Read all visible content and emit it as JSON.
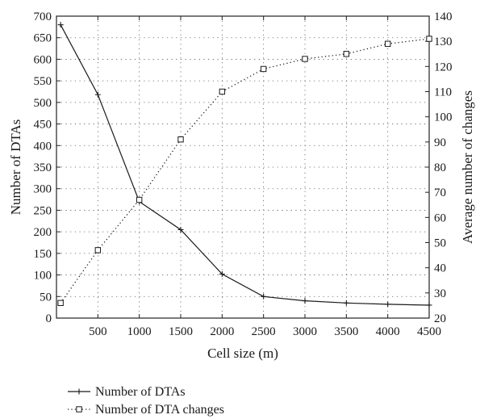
{
  "chart_data": {
    "type": "line",
    "xlabel": "Cell size (m)",
    "ylabel_left": "Number of DTAs",
    "ylabel_right": "Average number of changes",
    "xlim": [
      0,
      4500
    ],
    "x_ticks": [
      500,
      1000,
      1500,
      2000,
      2500,
      3000,
      3500,
      4000,
      4500
    ],
    "ylim_left": [
      0,
      700
    ],
    "y_ticks_left": [
      0,
      50,
      100,
      150,
      200,
      250,
      300,
      350,
      400,
      450,
      500,
      550,
      600,
      650,
      700
    ],
    "ylim_right": [
      20,
      140
    ],
    "y_ticks_right": [
      20,
      30,
      40,
      50,
      60,
      70,
      80,
      90,
      100,
      110,
      120,
      130,
      140
    ],
    "grid": true,
    "legend_position": "bottom-left",
    "series": [
      {
        "name": "Number of DTAs",
        "axis": "left",
        "style": "solid",
        "marker": "plus",
        "x": [
          50,
          500,
          1000,
          1500,
          2000,
          2500,
          3000,
          3500,
          4000,
          4500
        ],
        "y": [
          680,
          518,
          270,
          205,
          102,
          50,
          40,
          35,
          32,
          30
        ]
      },
      {
        "name": "Number of DTA changes",
        "axis": "right",
        "style": "dotted",
        "marker": "square",
        "x": [
          50,
          500,
          1000,
          1500,
          2000,
          2500,
          3000,
          3500,
          4000,
          4500
        ],
        "y": [
          26,
          47,
          67,
          91,
          110,
          119,
          123,
          125,
          129,
          131
        ]
      }
    ]
  }
}
